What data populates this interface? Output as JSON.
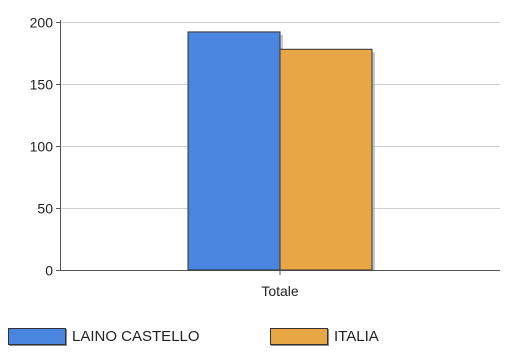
{
  "chart_data": {
    "type": "bar",
    "categories": [
      "Totale"
    ],
    "series": [
      {
        "name": "LAINO CASTELLO",
        "values": [
          192
        ],
        "color": "#4a86e0"
      },
      {
        "name": "ITALIA",
        "values": [
          178
        ],
        "color": "#e8a744"
      }
    ],
    "title": "",
    "xlabel": "",
    "ylabel": "",
    "ylim": [
      0,
      200
    ],
    "yticks": [
      0,
      50,
      100,
      150,
      200
    ],
    "grid": true,
    "legend": "bottom-left"
  }
}
